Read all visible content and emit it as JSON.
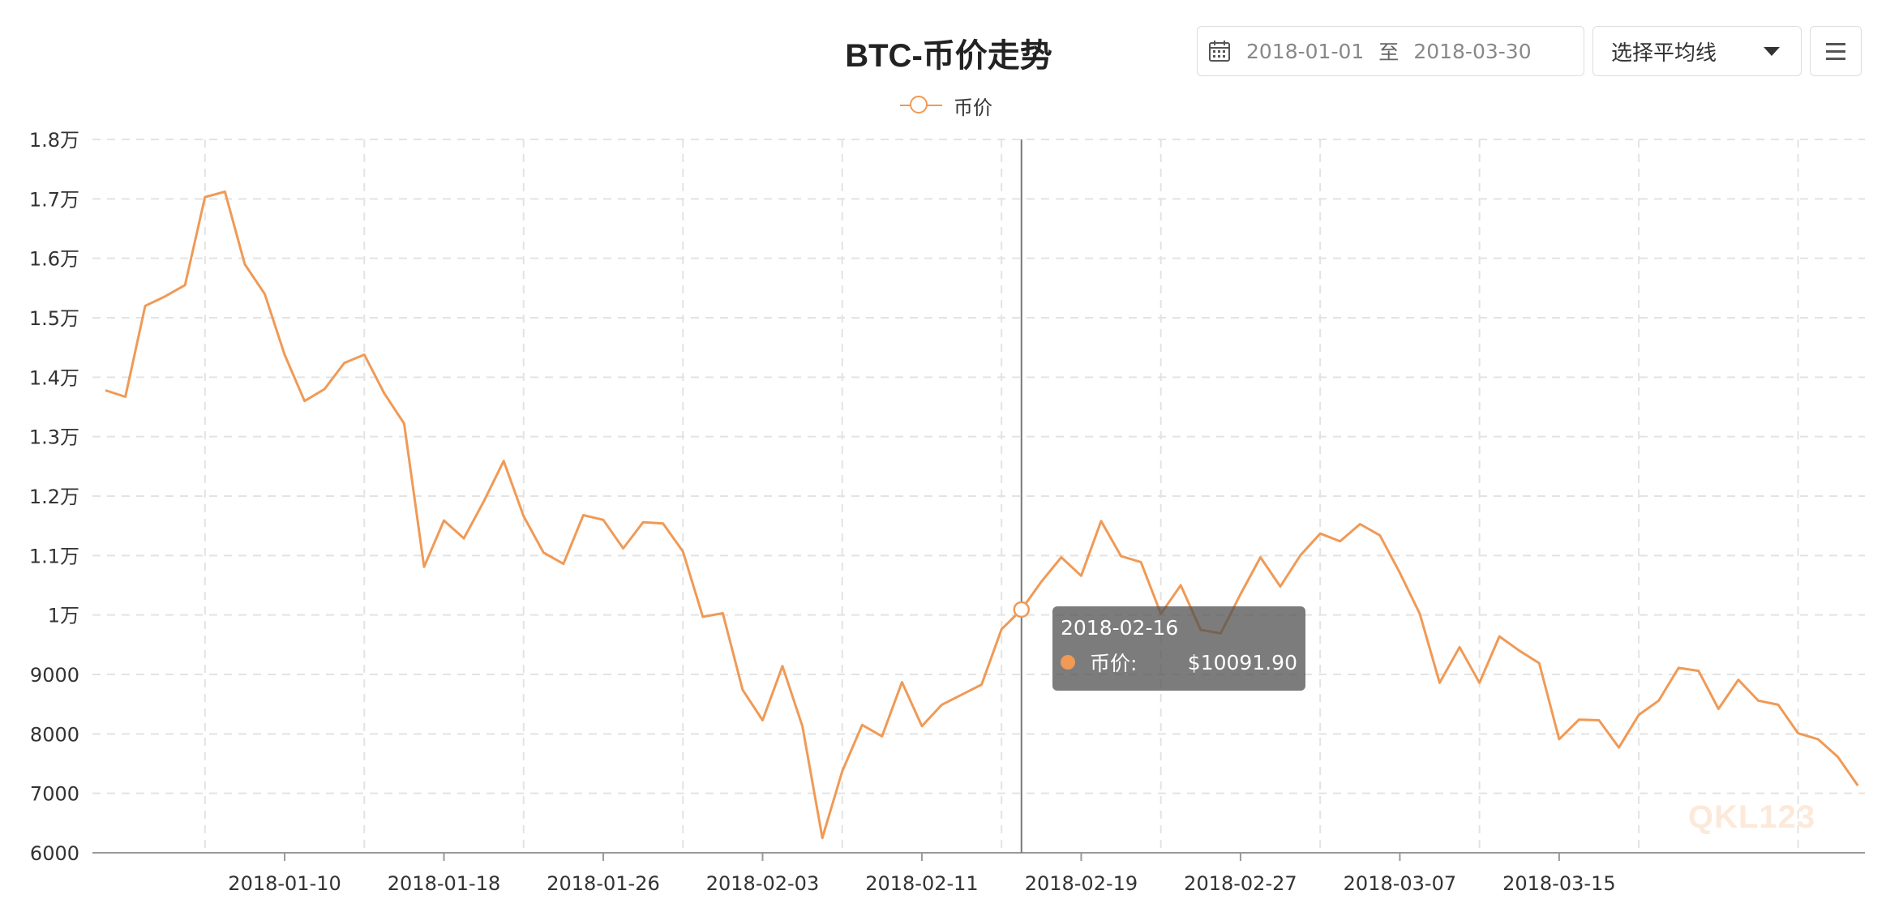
{
  "header": {
    "title": "BTC-币价走势"
  },
  "toolbar": {
    "start_date": "2018-01-01",
    "range_separator": "至",
    "end_date": "2018-03-30",
    "ma_select_label": "选择平均线",
    "menu_icon": "hamburger-menu-icon",
    "calendar_icon": "calendar-icon"
  },
  "legend": {
    "label": "币价"
  },
  "tooltip": {
    "date": "2018-02-16",
    "label": "币价:",
    "value": "$10091.90"
  },
  "watermark": "QKL123",
  "colors": {
    "series": "#f09a56",
    "grid": "#e3e3e3",
    "axis": "#999999"
  },
  "chart_data": {
    "type": "line",
    "title": "BTC-币价走势",
    "xlabel": "",
    "ylabel": "",
    "ylim": [
      6000,
      18000
    ],
    "y_ticks": [
      6000,
      7000,
      8000,
      9000,
      10000,
      11000,
      12000,
      13000,
      14000,
      15000,
      16000,
      17000,
      18000
    ],
    "y_tick_labels": [
      "6000",
      "7000",
      "8000",
      "9000",
      "1万",
      "1.1万",
      "1.2万",
      "1.3万",
      "1.4万",
      "1.5万",
      "1.6万",
      "1.7万",
      "1.8万"
    ],
    "x_tick_labels": [
      "2018-01-10",
      "2018-01-18",
      "2018-01-26",
      "2018-02-03",
      "2018-02-11",
      "2018-02-19",
      "2018-02-27",
      "2018-03-07",
      "2018-03-15"
    ],
    "grid": true,
    "legend_position": "top-center",
    "highlight": {
      "x": "2018-02-16",
      "y": 10091.9
    },
    "series": [
      {
        "name": "币价",
        "x": [
          "2018-01-01",
          "2018-01-02",
          "2018-01-03",
          "2018-01-04",
          "2018-01-05",
          "2018-01-06",
          "2018-01-07",
          "2018-01-08",
          "2018-01-09",
          "2018-01-10",
          "2018-01-11",
          "2018-01-12",
          "2018-01-13",
          "2018-01-14",
          "2018-01-15",
          "2018-01-16",
          "2018-01-17",
          "2018-01-18",
          "2018-01-19",
          "2018-01-20",
          "2018-01-21",
          "2018-01-22",
          "2018-01-23",
          "2018-01-24",
          "2018-01-25",
          "2018-01-26",
          "2018-01-27",
          "2018-01-28",
          "2018-01-29",
          "2018-01-30",
          "2018-01-31",
          "2018-02-01",
          "2018-02-02",
          "2018-02-03",
          "2018-02-04",
          "2018-02-05",
          "2018-02-06",
          "2018-02-07",
          "2018-02-08",
          "2018-02-09",
          "2018-02-10",
          "2018-02-11",
          "2018-02-12",
          "2018-02-13",
          "2018-02-14",
          "2018-02-15",
          "2018-02-16",
          "2018-02-17",
          "2018-02-18",
          "2018-02-19",
          "2018-02-20",
          "2018-02-21",
          "2018-02-22",
          "2018-02-23",
          "2018-02-24",
          "2018-02-25",
          "2018-02-26",
          "2018-02-27",
          "2018-02-28",
          "2018-03-01",
          "2018-03-02",
          "2018-03-03",
          "2018-03-04",
          "2018-03-05",
          "2018-03-06",
          "2018-03-07",
          "2018-03-08",
          "2018-03-09",
          "2018-03-10",
          "2018-03-11",
          "2018-03-12",
          "2018-03-13",
          "2018-03-14",
          "2018-03-15",
          "2018-03-16",
          "2018-03-17",
          "2018-03-18",
          "2018-03-19",
          "2018-03-20",
          "2018-03-21",
          "2018-03-22",
          "2018-03-23",
          "2018-03-24",
          "2018-03-25",
          "2018-03-26",
          "2018-03-27",
          "2018-03-28",
          "2018-03-29",
          "2018-03-30"
        ],
        "values": [
          13780,
          13670,
          15200,
          15360,
          15550,
          17030,
          17120,
          15900,
          15400,
          14380,
          13600,
          13800,
          14240,
          14380,
          13730,
          13220,
          10810,
          11590,
          11290,
          11910,
          12590,
          11660,
          11050,
          10860,
          11680,
          11600,
          11120,
          11560,
          11540,
          11070,
          9970,
          10030,
          8740,
          8230,
          9140,
          8130,
          6250,
          7370,
          8150,
          7960,
          8870,
          8130,
          8490,
          8660,
          8830,
          9760,
          10091.9,
          10560,
          10970,
          10660,
          11580,
          10990,
          10890,
          10020,
          10500,
          9750,
          9690,
          10350,
          10970,
          10480,
          11000,
          11370,
          11240,
          11530,
          11340,
          10710,
          10020,
          8860,
          9460,
          8860,
          9640,
          9400,
          9190,
          7910,
          8240,
          8230,
          7770,
          8320,
          8560,
          9110,
          9060,
          8420,
          8910,
          8560,
          8490,
          8010,
          7910,
          7610,
          7130
        ]
      }
    ]
  }
}
